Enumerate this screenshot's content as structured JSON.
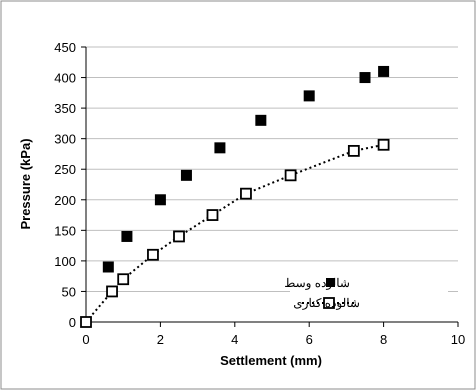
{
  "chart_data": {
    "type": "scatter",
    "title": "",
    "xlabel": "Settlement (mm)",
    "ylabel": "Pressure (kPa)",
    "xlim": [
      0,
      10
    ],
    "ylim": [
      0,
      450
    ],
    "x_ticks": [
      0,
      2,
      4,
      6,
      8,
      10
    ],
    "y_ticks": [
      0,
      50,
      100,
      150,
      200,
      250,
      300,
      350,
      400,
      450
    ],
    "grid": "horizontal",
    "legend_position": "bottom-right",
    "series": [
      {
        "name": "شالوده وسط",
        "marker": "filled-square",
        "line": "none",
        "color": "#000000",
        "points": [
          {
            "x": 0,
            "y": 0
          },
          {
            "x": 0.6,
            "y": 90
          },
          {
            "x": 1.1,
            "y": 140
          },
          {
            "x": 2.0,
            "y": 200
          },
          {
            "x": 2.7,
            "y": 240
          },
          {
            "x": 3.6,
            "y": 285
          },
          {
            "x": 4.7,
            "y": 330
          },
          {
            "x": 6.0,
            "y": 370
          },
          {
            "x": 7.5,
            "y": 400
          },
          {
            "x": 8.0,
            "y": 410
          }
        ]
      },
      {
        "name": "شالوده کناری",
        "marker": "open-square",
        "line": "dotted",
        "color": "#000000",
        "points": [
          {
            "x": 0,
            "y": 0
          },
          {
            "x": 0.7,
            "y": 50
          },
          {
            "x": 1.0,
            "y": 70
          },
          {
            "x": 1.8,
            "y": 110
          },
          {
            "x": 2.5,
            "y": 140
          },
          {
            "x": 3.4,
            "y": 175
          },
          {
            "x": 4.3,
            "y": 210
          },
          {
            "x": 5.5,
            "y": 240
          },
          {
            "x": 7.2,
            "y": 280
          },
          {
            "x": 8.0,
            "y": 290
          }
        ]
      }
    ]
  }
}
